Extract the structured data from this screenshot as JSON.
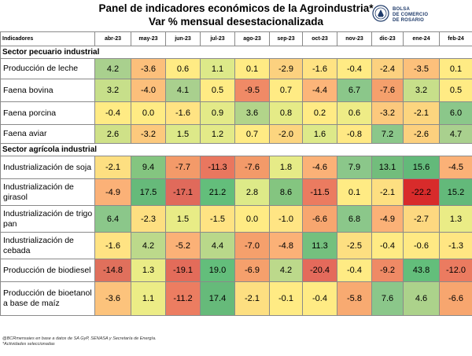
{
  "header": {
    "title_line1": "Panel de indicadores económicos de la Agroindustria*",
    "title_line2": "Var % mensual desestacionalizada",
    "logo_lines": [
      "BOLSA",
      "DE COMERCIO",
      "DE ROSARIO"
    ]
  },
  "table": {
    "indicator_header": "Indicadores",
    "months": [
      "abr-23",
      "may-23",
      "jun-23",
      "jul-23",
      "ago-23",
      "sep-23",
      "oct-23",
      "nov-23",
      "dic-23",
      "ene-24",
      "feb-24"
    ],
    "sectors": [
      {
        "name": "Sector pecuario industrial",
        "rows": [
          {
            "label": "Producción de leche",
            "values": [
              "4.2",
              "-3.6",
              "0.6",
              "1.1",
              "0.1",
              "-2.9",
              "-1.6",
              "-0.4",
              "-2.4",
              "-3.5",
              "0.1"
            ],
            "colors": [
              "#a9d08e",
              "#fcbf7b",
              "#ffeb84",
              "#dde989",
              "#ffeb84",
              "#fcd17f",
              "#ffe383",
              "#ffeb84",
              "#fcd17f",
              "#fcc07b",
              "#ffeb84"
            ]
          },
          {
            "label": "Faena bovina",
            "values": [
              "3.2",
              "-4.0",
              "4.1",
              "0.5",
              "-9.5",
              "0.7",
              "-4.4",
              "6.7",
              "-7.6",
              "3.2",
              "0.5"
            ],
            "colors": [
              "#c7df8a",
              "#fcbf7b",
              "#a9d08e",
              "#ffeb84",
              "#f08a66",
              "#ffeb84",
              "#fcb579",
              "#8bc78a",
              "#f5a06c",
              "#c7df8a",
              "#ffeb84"
            ]
          },
          {
            "label": "Faena porcina",
            "values": [
              "-0.4",
              "0.0",
              "-1.6",
              "0.9",
              "3.6",
              "0.8",
              "0.2",
              "0.6",
              "-3.2",
              "-2.1",
              "6.0"
            ],
            "colors": [
              "#ffeb84",
              "#ffeb84",
              "#ffe383",
              "#e3ea88",
              "#b2d48a",
              "#e5eb87",
              "#ffeb84",
              "#eeec86",
              "#fcc97d",
              "#fcd57f",
              "#8bc78a"
            ]
          },
          {
            "label": "Faena aviar",
            "values": [
              "2.6",
              "-3.2",
              "1.5",
              "1.2",
              "0.7",
              "-2.0",
              "1.6",
              "-0.8",
              "7.2",
              "-2.6",
              "4.7"
            ],
            "colors": [
              "#cfe188",
              "#fcc97d",
              "#dde989",
              "#e3ea88",
              "#ffeb84",
              "#fcd57f",
              "#dde989",
              "#ffe984",
              "#8bc78a",
              "#fcd07e",
              "#a9d08e"
            ]
          }
        ]
      },
      {
        "name": "Sector agrícola industrial",
        "rows": [
          {
            "label": "Industrialización de soja",
            "values": [
              "-2.1",
              "9.4",
              "-7.7",
              "-11.3",
              "-7.6",
              "1.8",
              "-4.6",
              "7.9",
              "13.1",
              "15.6",
              "-4.5"
            ],
            "colors": [
              "#fddf81",
              "#84c580",
              "#f39a69",
              "#e9775f",
              "#f39a69",
              "#e6eb87",
              "#fbb177",
              "#8bc78a",
              "#72bd7c",
              "#63b97a",
              "#fbb177"
            ]
          },
          {
            "label": "Industrialización de girasol",
            "values": [
              "-4.9",
              "17.5",
              "-17.1",
              "21.2",
              "2.8",
              "8.6",
              "-11.5",
              "0.1",
              "-2.1",
              "-22.2",
              "15.2"
            ],
            "colors": [
              "#fbb177",
              "#66ba7a",
              "#e06a5b",
              "#63be7b",
              "#ddea88",
              "#84c580",
              "#eb7b60",
              "#ffeb84",
              "#fddf81",
              "#d82b2b",
              "#63b97a"
            ]
          },
          {
            "label": "Industrialización de trigo pan",
            "values": [
              "6.4",
              "-2.3",
              "1.5",
              "-1.5",
              "0.0",
              "-1.0",
              "-6.6",
              "6.8",
              "-4.9",
              "-2.7",
              "1.3"
            ],
            "colors": [
              "#8bc78a",
              "#fddf81",
              "#e8ec86",
              "#ffe383",
              "#ffeb84",
              "#ffe584",
              "#f7a66f",
              "#8bc78a",
              "#fbb177",
              "#fdd880",
              "#eaec86"
            ]
          },
          {
            "label": "Industrialización de cebada",
            "values": [
              "-1.6",
              "4.2",
              "-5.2",
              "4.4",
              "-7.0",
              "-4.8",
              "11.3",
              "-2.5",
              "-0.4",
              "-0.6",
              "-1.3"
            ],
            "colors": [
              "#ffe383",
              "#bcd98b",
              "#fbb177",
              "#b9d88a",
              "#f5a06c",
              "#fbb177",
              "#74c07e",
              "#fddf81",
              "#ffeb84",
              "#ffe984",
              "#ffe683"
            ]
          },
          {
            "label": "Producción de biodiesel",
            "values": [
              "-14.8",
              "1.3",
              "-19.1",
              "19.0",
              "-6.9",
              "4.2",
              "-20.4",
              "-0.4",
              "-9.2",
              "43.8",
              "-12.0"
            ],
            "colors": [
              "#e0705c",
              "#eaec86",
              "#e36c5a",
              "#63be7b",
              "#f5a06c",
              "#bcd98b",
              "#e46a5b",
              "#ffeb84",
              "#ef8a65",
              "#63be7b",
              "#eb7b60"
            ]
          },
          {
            "label": "Producción de bioetanol a base de maíz",
            "values": [
              "-3.6",
              "1.1",
              "-11.2",
              "17.4",
              "-2.1",
              "-0.1",
              "-0.4",
              "-5.8",
              "7.6",
              "4.6",
              "-6.6"
            ],
            "colors": [
              "#fcc37c",
              "#ecec86",
              "#ec7d61",
              "#66ba7a",
              "#fddf81",
              "#ffeb84",
              "#ffeb84",
              "#f8aa71",
              "#8bc78a",
              "#acd28b",
              "#f7a66f"
            ]
          }
        ]
      }
    ]
  },
  "footer": {
    "source": "@BCRmensaies en base a datos de SA GyP, SENASA y Secretaría de Energía.",
    "note": "*Actividades seleccionadas"
  }
}
